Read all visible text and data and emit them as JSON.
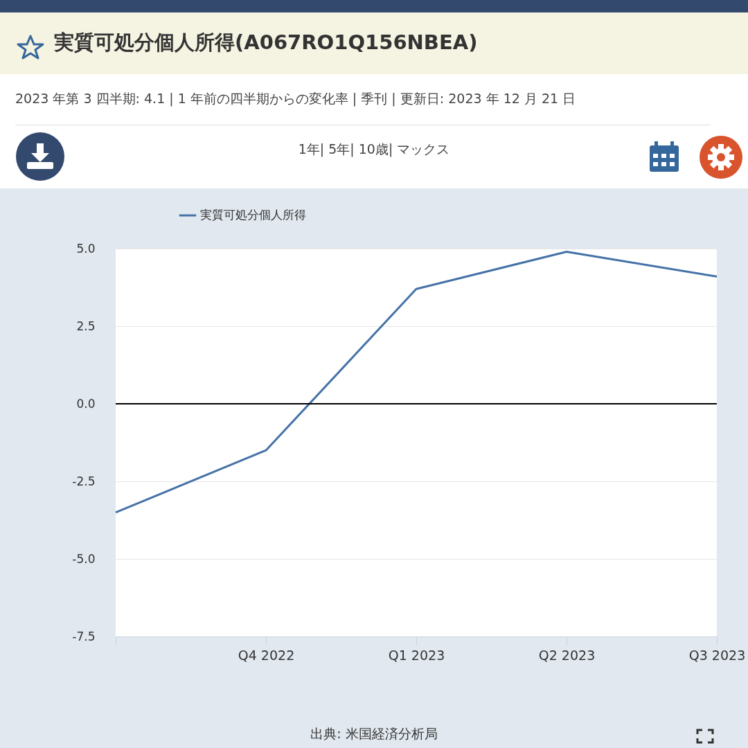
{
  "chart_data": {
    "type": "line",
    "title": "実質可処分個人所得(A067RO1Q156NBEA)",
    "subtitle": "2023 年第 3 四半期: 4.1 | 1 年前の四半期からの変化率 | 季刊 | 更新日: 2023 年 12 月 21 日",
    "categories": [
      null,
      "Q4 2022",
      "Q1 2023",
      "Q2 2023",
      "Q3 2023"
    ],
    "series": [
      {
        "name": "実質可処分個人所得",
        "color": "#4572a7",
        "values": [
          -3.5,
          -1.5,
          3.7,
          4.9,
          4.1
        ]
      }
    ],
    "ylim": [
      -7.5,
      5
    ],
    "yticks": [
      {
        "value": -7.5,
        "label": "-7.5"
      },
      {
        "value": -5,
        "label": "-5.0"
      },
      {
        "value": -2.5,
        "label": "-2.5"
      },
      {
        "value": 0,
        "label": "0.0"
      },
      {
        "value": 2.5,
        "label": "2.5"
      },
      {
        "value": 5,
        "label": "5.0"
      }
    ],
    "ref_lines": [
      {
        "axis": "y",
        "value": 0,
        "color": "#000000"
      }
    ],
    "grid": "y",
    "legend": "top left",
    "annotations": [
      "1年| 5年| 10歳| マックス",
      "出典: 米国経済分析局"
    ]
  }
}
